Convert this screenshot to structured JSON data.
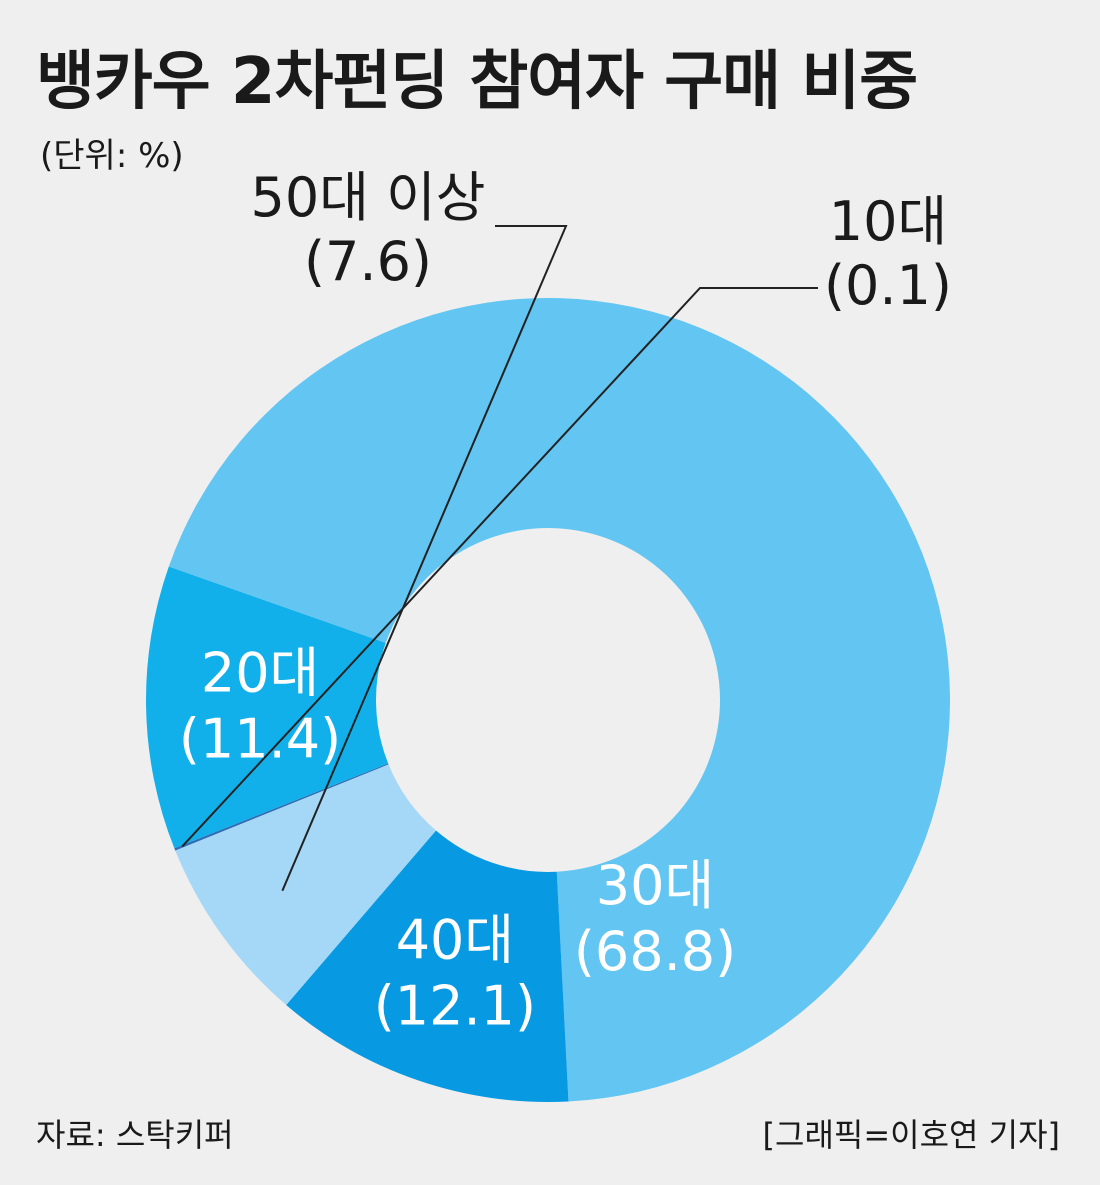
{
  "header": {
    "title": "뱅카우 2차펀딩 참여자 구매 비중",
    "unit": "(단위: %)"
  },
  "footer": {
    "source": "자료: 스탁키퍼",
    "credit": "[그래픽=이호연 기자]"
  },
  "chart_data": {
    "type": "pie",
    "variant": "donut",
    "title": "뱅카우 2차펀딩 참여자 구매 비중",
    "unit": "%",
    "legend": "none",
    "slices": [
      {
        "label": "10대",
        "value": 0.1,
        "display": "(0.1)",
        "color": "#2f6db5",
        "label_color": "#1a1a1a"
      },
      {
        "label": "20대",
        "value": 11.4,
        "display": "(11.4)",
        "color": "#12b0ea",
        "label_color": "#ffffff"
      },
      {
        "label": "30대",
        "value": 68.8,
        "display": "(68.8)",
        "color": "#62c5f2",
        "label_color": "#ffffff"
      },
      {
        "label": "40대",
        "value": 12.1,
        "display": "(12.1)",
        "color": "#0799e2",
        "label_color": "#ffffff"
      },
      {
        "label": "50대 이상",
        "value": 7.6,
        "display": "(7.6)",
        "color": "#a4d8f6",
        "label_color": "#1a1a1a"
      }
    ]
  }
}
